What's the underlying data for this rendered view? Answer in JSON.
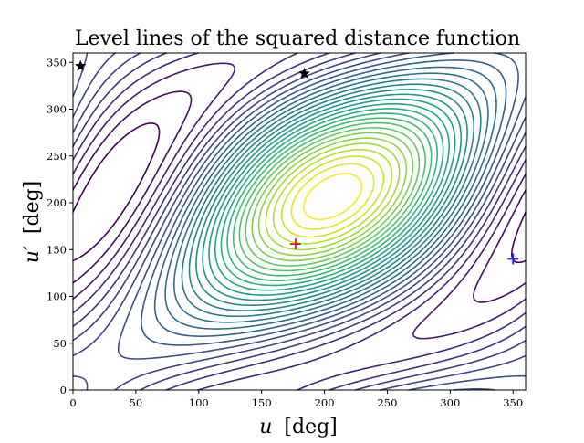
{
  "chart_data": {
    "type": "contour",
    "title": "Level lines of the squared distance function",
    "xlabel_symbol": "u",
    "xlabel_unit": "[deg]",
    "ylabel_symbol": "u′",
    "ylabel_unit": "[deg]",
    "xlim": [
      0,
      360
    ],
    "ylim": [
      0,
      360
    ],
    "x_ticks": [
      0,
      50,
      100,
      150,
      200,
      250,
      300,
      350
    ],
    "y_ticks": [
      0,
      50,
      100,
      150,
      200,
      250,
      300,
      350
    ],
    "grid": false,
    "colormap": "viridis",
    "level_count": 30,
    "markers": [
      {
        "kind": "plus",
        "color": "#e31a1c",
        "x": 177,
        "y": 156
      },
      {
        "kind": "plus",
        "color": "#1f1fff",
        "x": 350,
        "y": 140
      },
      {
        "kind": "star",
        "color": "#000000",
        "x": 6,
        "y": 346
      },
      {
        "kind": "star",
        "color": "#000000",
        "x": 184,
        "y": 338
      }
    ]
  }
}
